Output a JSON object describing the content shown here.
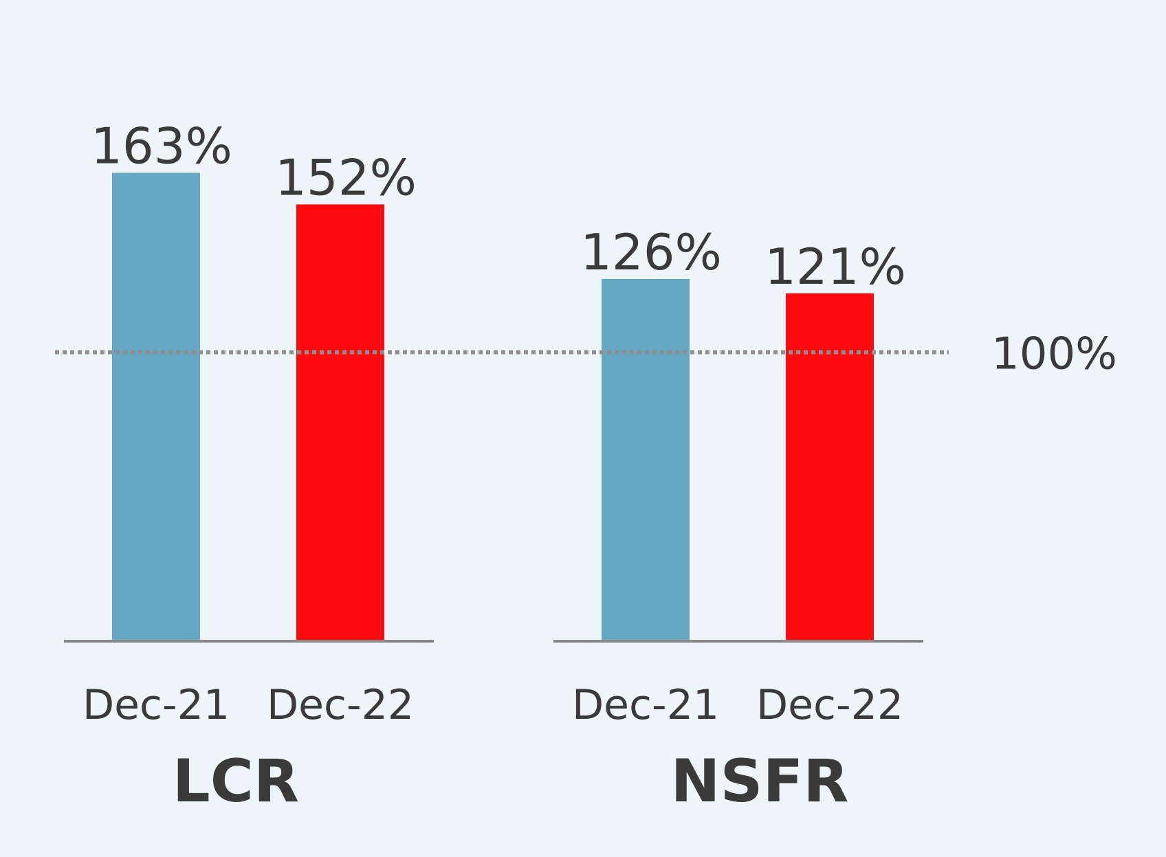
{
  "chart_data": {
    "type": "bar",
    "groups": [
      {
        "name": "LCR",
        "categories": [
          "Dec-21",
          "Dec-22"
        ],
        "values": [
          163,
          152
        ],
        "value_labels": [
          "163%",
          "152%"
        ]
      },
      {
        "name": "NSFR",
        "categories": [
          "Dec-21",
          "Dec-22"
        ],
        "values": [
          126,
          121
        ],
        "value_labels": [
          "126%",
          "121%"
        ]
      }
    ],
    "bar_colors": [
      "#66a7c2",
      "#ff0a0e"
    ],
    "reference_line": {
      "value": 100,
      "label": "100%",
      "style": "dotted",
      "color": "#8f8f8f"
    },
    "axis_color": "#8a8a8a",
    "ylim": [
      0,
      163
    ],
    "title": "",
    "xlabel": "",
    "ylabel": "",
    "grid": false,
    "legend": "none"
  }
}
